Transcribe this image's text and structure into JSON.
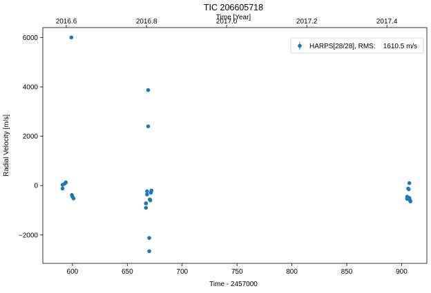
{
  "chart_data": {
    "type": "scatter",
    "title": "TIC 206605718",
    "xlabel": "Time - 2457000",
    "ylabel": "Radial Velocity [m/s]",
    "top_xlabel": "Time [Year]",
    "xlim": [
      573,
      923
    ],
    "ylim": [
      -3150,
      6400
    ],
    "x_ticks": [
      600,
      650,
      700,
      750,
      800,
      850,
      900
    ],
    "y_ticks": [
      -2000,
      0,
      2000,
      4000,
      6000
    ],
    "top_ticks": [
      {
        "x": 594.4,
        "label": "2016.6"
      },
      {
        "x": 667.5,
        "label": "2016.8"
      },
      {
        "x": 740.5,
        "label": "2017.0"
      },
      {
        "x": 813.6,
        "label": "2017.2"
      },
      {
        "x": 886.6,
        "label": "2017.4"
      }
    ],
    "grid": false,
    "legend_position": "top-right",
    "marker_color": "#1f77b4",
    "series": [
      {
        "name": "HARPS[28/28], RMS:    1610.5 m/s",
        "points": [
          {
            "x": 591,
            "y": -120
          },
          {
            "x": 591,
            "y": 30
          },
          {
            "x": 593,
            "y": 80
          },
          {
            "x": 594,
            "y": 130
          },
          {
            "x": 599,
            "y": 6000
          },
          {
            "x": 599.5,
            "y": -380
          },
          {
            "x": 600,
            "y": -450
          },
          {
            "x": 601,
            "y": -520
          },
          {
            "x": 667,
            "y": -900
          },
          {
            "x": 667,
            "y": -720
          },
          {
            "x": 668,
            "y": -360
          },
          {
            "x": 668,
            "y": -230
          },
          {
            "x": 669,
            "y": 3870
          },
          {
            "x": 669,
            "y": 2400
          },
          {
            "x": 670,
            "y": -2120
          },
          {
            "x": 670,
            "y": -2660
          },
          {
            "x": 670.5,
            "y": -560
          },
          {
            "x": 671,
            "y": -600
          },
          {
            "x": 671.5,
            "y": -290
          },
          {
            "x": 672,
            "y": -200
          },
          {
            "x": 905,
            "y": -450
          },
          {
            "x": 905,
            "y": -540
          },
          {
            "x": 906,
            "y": -120
          },
          {
            "x": 906.5,
            "y": -150
          },
          {
            "x": 907,
            "y": 100
          },
          {
            "x": 907,
            "y": -500
          },
          {
            "x": 907.5,
            "y": -580
          },
          {
            "x": 908,
            "y": -640
          }
        ]
      }
    ]
  }
}
